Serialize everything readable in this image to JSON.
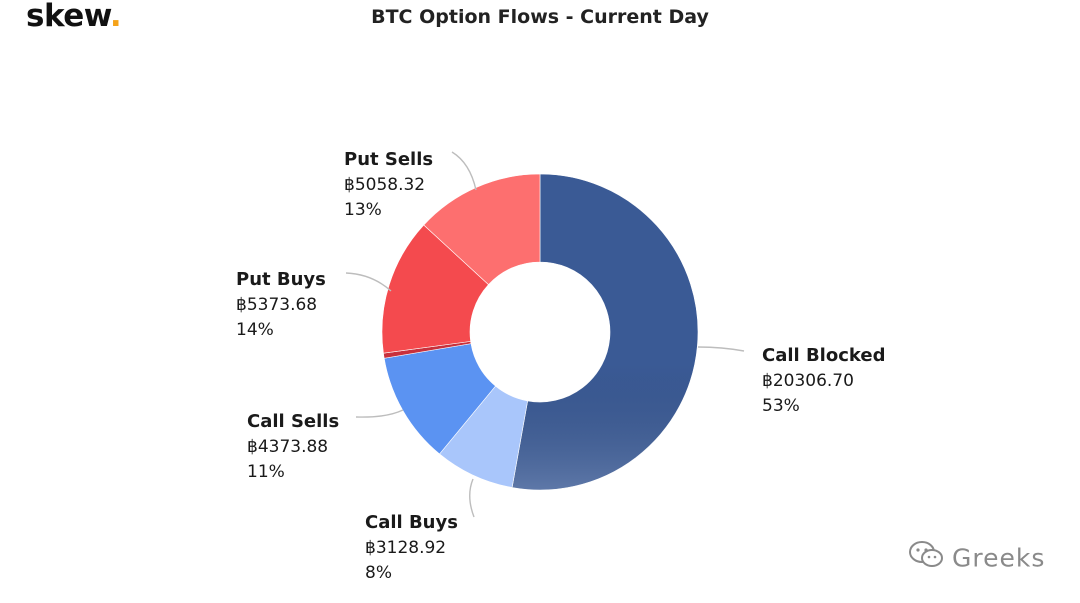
{
  "brand": {
    "name": "skew",
    "dot": "."
  },
  "chart_data": {
    "type": "pie",
    "variant": "donut",
    "title": "BTC Option Flows - Current Day",
    "start_angle_deg": 0,
    "direction": "clockwise",
    "slices": [
      {
        "name": "Call Blocked",
        "value_label": "฿20306.70",
        "value": 20306.7,
        "percent_label": "53%",
        "percent": 53,
        "color": "#3a5a95"
      },
      {
        "name": "Call Buys",
        "value_label": "฿3128.92",
        "value": 3128.92,
        "percent_label": "8%",
        "percent": 8,
        "color": "#a9c6fb"
      },
      {
        "name": "Call Sells",
        "value_label": "฿4373.88",
        "value": 4373.88,
        "percent_label": "11%",
        "percent": 11,
        "color": "#5b93f2"
      },
      {
        "name": "",
        "value": 200,
        "color": "#c8303c"
      },
      {
        "name": "Put Buys",
        "value_label": "฿5373.68",
        "value": 5373.68,
        "percent_label": "14%",
        "percent": 14,
        "color": "#f44a4e"
      },
      {
        "name": "Put Sells",
        "value_label": "฿5058.32",
        "value": 5058.32,
        "percent_label": "13%",
        "percent": 13,
        "color": "#fd6f6f"
      }
    ],
    "legend": "none",
    "grid": false
  },
  "watermark": {
    "text": "Greeks",
    "icon": "wechat-icon"
  }
}
